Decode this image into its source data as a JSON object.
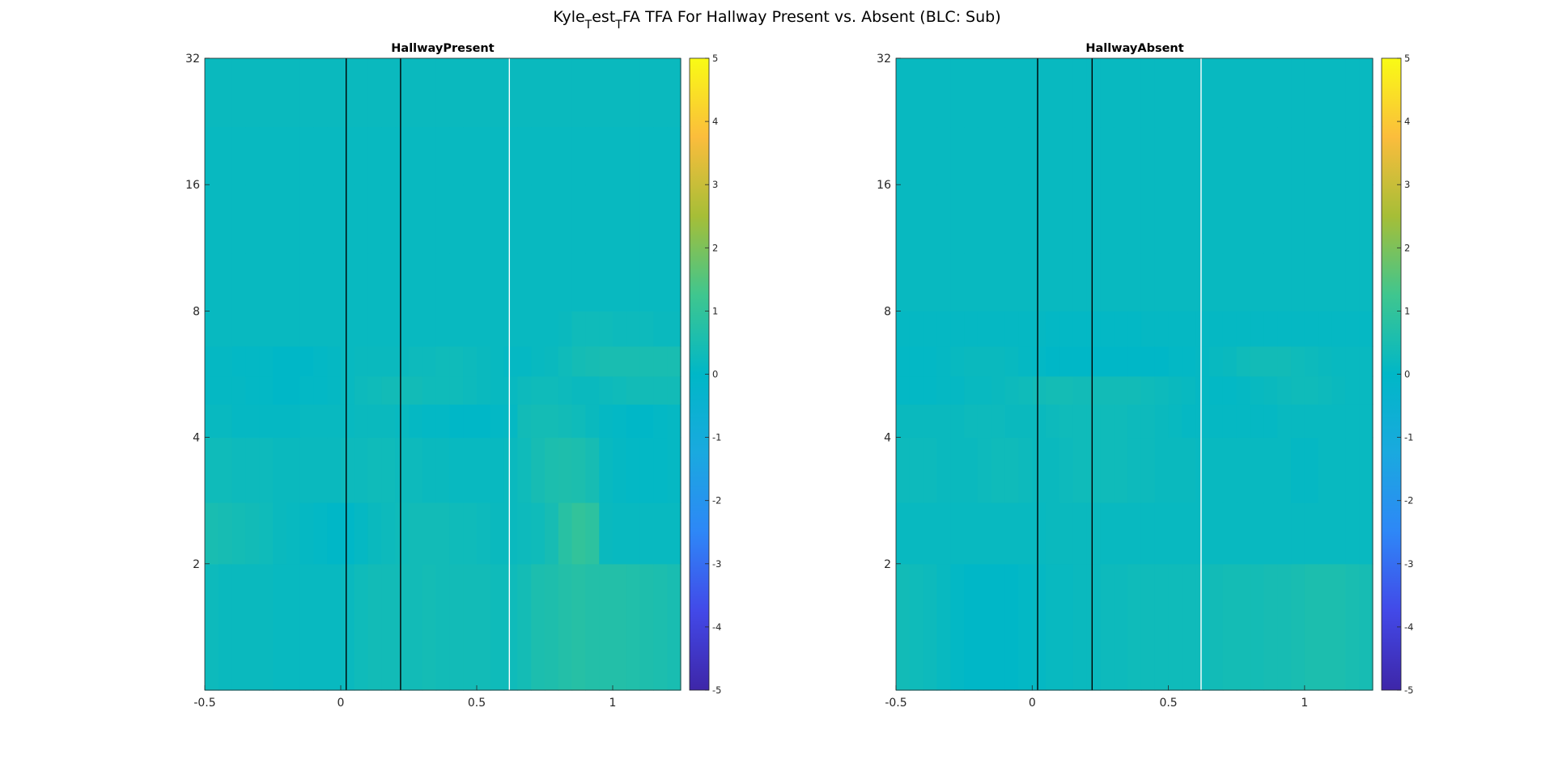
{
  "figure": {
    "title_parts": [
      "Kyle",
      "T",
      "est",
      "T",
      "FA TFA For Hallway Present vs. Absent (BLC: Sub)"
    ]
  },
  "colors": {
    "background": "#ffffff",
    "event_line_1": "#000000",
    "event_line_2": "#000000",
    "event_line_3": "#ffffff",
    "colormap": "parula"
  },
  "chart_data": [
    {
      "type": "heatmap",
      "title": "HallwayPresent",
      "xlabel": "",
      "ylabel": "",
      "x_range": [
        -0.5,
        1.25
      ],
      "x_ticks": [
        -0.5,
        0,
        0.5,
        1
      ],
      "x_tick_labels": [
        "-0.5",
        "0",
        "0.5",
        "1"
      ],
      "y_scale": "log2",
      "y_range": [
        1,
        32
      ],
      "y_ticks": [
        2,
        4,
        8,
        16,
        32
      ],
      "y_tick_labels": [
        "2",
        "4",
        "8",
        "16",
        "32"
      ],
      "x_bin_edges": [
        -0.5,
        -0.45,
        -0.4,
        -0.35,
        -0.3,
        -0.25,
        -0.2,
        -0.15,
        -0.1,
        -0.05,
        0,
        0.05,
        0.1,
        0.15,
        0.2,
        0.25,
        0.3,
        0.35,
        0.4,
        0.45,
        0.5,
        0.55,
        0.6,
        0.65,
        0.7,
        0.75,
        0.8,
        0.85,
        0.9,
        0.95,
        1.0,
        1.05,
        1.1,
        1.15,
        1.2,
        1.25
      ],
      "freq_bin_edges": [
        1,
        2,
        2.8,
        4,
        4.8,
        5.6,
        6.6,
        8,
        11,
        16,
        22,
        32
      ],
      "values": [
        [
          0.25,
          0.2,
          0.2,
          0.2,
          0.2,
          0.15,
          0.15,
          0.15,
          0.15,
          0.15,
          0.2,
          0.3,
          0.35,
          0.35,
          0.35,
          0.35,
          0.4,
          0.35,
          0.35,
          0.35,
          0.35,
          0.3,
          0.3,
          0.4,
          0.55,
          0.6,
          0.7,
          0.75,
          0.7,
          0.7,
          0.7,
          0.65,
          0.6,
          0.55,
          0.5
        ],
        [
          0.5,
          0.45,
          0.4,
          0.35,
          0.3,
          0.2,
          0.15,
          0.1,
          0.05,
          0.0,
          0.0,
          0.1,
          0.2,
          0.25,
          0.3,
          0.35,
          0.35,
          0.35,
          0.3,
          0.3,
          0.25,
          0.2,
          0.2,
          0.25,
          0.3,
          0.45,
          0.8,
          1.0,
          0.9,
          0.2,
          0.15,
          0.15,
          0.15,
          0.15,
          0.15
        ],
        [
          0.3,
          0.3,
          0.25,
          0.25,
          0.25,
          0.2,
          0.2,
          0.2,
          0.2,
          0.2,
          0.25,
          0.25,
          0.3,
          0.3,
          0.25,
          0.25,
          0.2,
          0.2,
          0.15,
          0.15,
          0.15,
          0.15,
          0.2,
          0.3,
          0.45,
          0.55,
          0.6,
          0.55,
          0.45,
          0.15,
          0.1,
          0.05,
          0.05,
          0.05,
          0.1
        ],
        [
          0.15,
          0.15,
          0.1,
          0.1,
          0.1,
          0.1,
          0.1,
          0.15,
          0.15,
          0.15,
          0.15,
          0.2,
          0.2,
          0.2,
          0.15,
          0.1,
          0.05,
          0.05,
          0.0,
          0.0,
          0.0,
          0.05,
          0.1,
          0.35,
          0.4,
          0.4,
          0.35,
          0.3,
          0.2,
          0.1,
          0.05,
          0.0,
          0.0,
          0.05,
          0.1
        ],
        [
          0.1,
          0.1,
          0.1,
          0.05,
          0.05,
          0.0,
          0.0,
          0.05,
          0.05,
          0.1,
          0.15,
          0.25,
          0.3,
          0.35,
          0.35,
          0.35,
          0.3,
          0.3,
          0.3,
          0.25,
          0.2,
          0.15,
          0.15,
          0.25,
          0.3,
          0.3,
          0.25,
          0.2,
          0.2,
          0.25,
          0.3,
          0.35,
          0.35,
          0.35,
          0.35
        ],
        [
          0.1,
          0.1,
          0.05,
          0.05,
          0.05,
          0.0,
          0.0,
          0.0,
          0.05,
          0.1,
          0.15,
          0.2,
          0.2,
          0.2,
          0.2,
          0.25,
          0.25,
          0.3,
          0.3,
          0.25,
          0.2,
          0.15,
          0.1,
          0.1,
          0.15,
          0.2,
          0.3,
          0.4,
          0.45,
          0.5,
          0.5,
          0.5,
          0.5,
          0.5,
          0.5
        ],
        [
          0.15,
          0.15,
          0.15,
          0.15,
          0.15,
          0.15,
          0.15,
          0.15,
          0.15,
          0.15,
          0.15,
          0.15,
          0.15,
          0.15,
          0.15,
          0.15,
          0.15,
          0.15,
          0.15,
          0.15,
          0.15,
          0.15,
          0.15,
          0.15,
          0.15,
          0.15,
          0.2,
          0.3,
          0.3,
          0.3,
          0.25,
          0.25,
          0.25,
          0.2,
          0.2
        ],
        [
          0.15,
          0.15,
          0.15,
          0.15,
          0.15,
          0.15,
          0.15,
          0.15,
          0.15,
          0.15,
          0.15,
          0.15,
          0.15,
          0.15,
          0.15,
          0.15,
          0.15,
          0.15,
          0.15,
          0.15,
          0.15,
          0.15,
          0.15,
          0.15,
          0.15,
          0.15,
          0.15,
          0.15,
          0.15,
          0.15,
          0.15,
          0.15,
          0.15,
          0.15,
          0.15
        ],
        [
          0.15,
          0.15,
          0.15,
          0.15,
          0.15,
          0.15,
          0.15,
          0.15,
          0.15,
          0.15,
          0.15,
          0.15,
          0.15,
          0.15,
          0.15,
          0.15,
          0.15,
          0.15,
          0.15,
          0.15,
          0.15,
          0.15,
          0.15,
          0.15,
          0.15,
          0.15,
          0.15,
          0.15,
          0.15,
          0.15,
          0.15,
          0.15,
          0.15,
          0.15,
          0.15
        ],
        [
          0.15,
          0.15,
          0.15,
          0.15,
          0.15,
          0.15,
          0.15,
          0.15,
          0.15,
          0.15,
          0.15,
          0.15,
          0.15,
          0.15,
          0.15,
          0.15,
          0.15,
          0.15,
          0.15,
          0.15,
          0.15,
          0.15,
          0.15,
          0.15,
          0.15,
          0.15,
          0.15,
          0.15,
          0.15,
          0.15,
          0.15,
          0.15,
          0.15,
          0.15,
          0.15
        ],
        [
          0.2,
          0.2,
          0.2,
          0.2,
          0.2,
          0.2,
          0.2,
          0.2,
          0.2,
          0.2,
          0.2,
          0.2,
          0.2,
          0.2,
          0.2,
          0.2,
          0.2,
          0.2,
          0.2,
          0.2,
          0.2,
          0.2,
          0.2,
          0.2,
          0.2,
          0.2,
          0.2,
          0.2,
          0.2,
          0.2,
          0.2,
          0.2,
          0.2,
          0.2,
          0.2
        ]
      ],
      "event_lines_x": [
        0.02,
        0.22,
        0.62
      ],
      "colorbar": {
        "range": [
          -5,
          5
        ],
        "ticks": [
          -5,
          -4,
          -3,
          -2,
          -1,
          0,
          1,
          2,
          3,
          4,
          5
        ],
        "tick_labels": [
          "-5",
          "-4",
          "-3",
          "-2",
          "-1",
          "0",
          "1",
          "2",
          "3",
          "4",
          "5"
        ]
      }
    },
    {
      "type": "heatmap",
      "title": "HallwayAbsent",
      "xlabel": "",
      "ylabel": "",
      "x_range": [
        -0.5,
        1.25
      ],
      "x_ticks": [
        -0.5,
        0,
        0.5,
        1
      ],
      "x_tick_labels": [
        "-0.5",
        "0",
        "0.5",
        "1"
      ],
      "y_scale": "log2",
      "y_range": [
        1,
        32
      ],
      "y_ticks": [
        2,
        4,
        8,
        16,
        32
      ],
      "y_tick_labels": [
        "2",
        "4",
        "8",
        "16",
        "32"
      ],
      "x_bin_edges": [
        -0.5,
        -0.45,
        -0.4,
        -0.35,
        -0.3,
        -0.25,
        -0.2,
        -0.15,
        -0.1,
        -0.05,
        0,
        0.05,
        0.1,
        0.15,
        0.2,
        0.25,
        0.3,
        0.35,
        0.4,
        0.45,
        0.5,
        0.55,
        0.6,
        0.65,
        0.7,
        0.75,
        0.8,
        0.85,
        0.9,
        0.95,
        1.0,
        1.05,
        1.1,
        1.15,
        1.2,
        1.25
      ],
      "freq_bin_edges": [
        1,
        2,
        2.8,
        4,
        4.8,
        5.6,
        6.6,
        8,
        11,
        16,
        22,
        32
      ],
      "values": [
        [
          0.35,
          0.3,
          0.25,
          0.15,
          0.05,
          0.0,
          0.0,
          0.0,
          0.0,
          0.05,
          0.1,
          0.15,
          0.15,
          0.2,
          0.2,
          0.25,
          0.25,
          0.3,
          0.3,
          0.3,
          0.3,
          0.3,
          0.3,
          0.35,
          0.4,
          0.4,
          0.4,
          0.45,
          0.45,
          0.5,
          0.55,
          0.55,
          0.55,
          0.5,
          0.45
        ],
        [
          0.15,
          0.15,
          0.15,
          0.15,
          0.15,
          0.15,
          0.15,
          0.15,
          0.15,
          0.15,
          0.15,
          0.2,
          0.2,
          0.2,
          0.2,
          0.15,
          0.15,
          0.15,
          0.15,
          0.15,
          0.15,
          0.15,
          0.15,
          0.15,
          0.15,
          0.15,
          0.15,
          0.15,
          0.15,
          0.15,
          0.15,
          0.15,
          0.15,
          0.15,
          0.15
        ],
        [
          0.25,
          0.25,
          0.25,
          0.2,
          0.2,
          0.2,
          0.25,
          0.3,
          0.3,
          0.25,
          0.2,
          0.2,
          0.25,
          0.3,
          0.3,
          0.3,
          0.3,
          0.25,
          0.25,
          0.2,
          0.2,
          0.2,
          0.15,
          0.15,
          0.15,
          0.15,
          0.15,
          0.15,
          0.15,
          0.1,
          0.1,
          0.15,
          0.15,
          0.15,
          0.15
        ],
        [
          0.2,
          0.2,
          0.2,
          0.2,
          0.2,
          0.25,
          0.25,
          0.25,
          0.2,
          0.2,
          0.2,
          0.25,
          0.3,
          0.3,
          0.3,
          0.3,
          0.3,
          0.25,
          0.25,
          0.2,
          0.15,
          0.1,
          0.1,
          0.1,
          0.1,
          0.1,
          0.1,
          0.1,
          0.15,
          0.15,
          0.15,
          0.15,
          0.15,
          0.15,
          0.15
        ],
        [
          0.05,
          0.05,
          0.05,
          0.1,
          0.1,
          0.15,
          0.15,
          0.2,
          0.25,
          0.3,
          0.35,
          0.4,
          0.4,
          0.35,
          0.35,
          0.35,
          0.35,
          0.35,
          0.3,
          0.25,
          0.2,
          0.15,
          0.1,
          0.05,
          0.05,
          0.1,
          0.15,
          0.2,
          0.25,
          0.3,
          0.3,
          0.25,
          0.2,
          0.15,
          0.15
        ],
        [
          0.05,
          0.05,
          0.05,
          0.1,
          0.15,
          0.2,
          0.2,
          0.2,
          0.15,
          0.1,
          0.05,
          0.0,
          0.0,
          0.0,
          0.0,
          0.0,
          0.0,
          0.0,
          0.0,
          0.0,
          0.05,
          0.05,
          0.1,
          0.15,
          0.2,
          0.3,
          0.35,
          0.35,
          0.35,
          0.3,
          0.25,
          0.2,
          0.15,
          0.15,
          0.15
        ],
        [
          0.1,
          0.1,
          0.1,
          0.1,
          0.1,
          0.1,
          0.1,
          0.1,
          0.1,
          0.1,
          0.1,
          0.05,
          0.05,
          0.05,
          0.05,
          0.05,
          0.05,
          0.05,
          0.1,
          0.1,
          0.1,
          0.1,
          0.1,
          0.1,
          0.1,
          0.1,
          0.1,
          0.1,
          0.1,
          0.1,
          0.1,
          0.1,
          0.1,
          0.1,
          0.1
        ],
        [
          0.15,
          0.15,
          0.15,
          0.15,
          0.15,
          0.15,
          0.15,
          0.15,
          0.15,
          0.15,
          0.15,
          0.15,
          0.15,
          0.15,
          0.15,
          0.15,
          0.15,
          0.15,
          0.15,
          0.15,
          0.15,
          0.15,
          0.15,
          0.15,
          0.15,
          0.15,
          0.15,
          0.15,
          0.15,
          0.15,
          0.15,
          0.15,
          0.15,
          0.15,
          0.15
        ],
        [
          0.15,
          0.15,
          0.15,
          0.15,
          0.15,
          0.15,
          0.15,
          0.15,
          0.15,
          0.15,
          0.15,
          0.15,
          0.15,
          0.15,
          0.15,
          0.15,
          0.15,
          0.15,
          0.15,
          0.15,
          0.15,
          0.15,
          0.15,
          0.15,
          0.15,
          0.15,
          0.15,
          0.15,
          0.15,
          0.15,
          0.15,
          0.15,
          0.15,
          0.15,
          0.15
        ],
        [
          0.15,
          0.15,
          0.15,
          0.15,
          0.15,
          0.15,
          0.15,
          0.15,
          0.15,
          0.15,
          0.15,
          0.15,
          0.15,
          0.15,
          0.15,
          0.15,
          0.15,
          0.15,
          0.15,
          0.15,
          0.15,
          0.15,
          0.15,
          0.15,
          0.15,
          0.15,
          0.15,
          0.15,
          0.15,
          0.15,
          0.15,
          0.15,
          0.15,
          0.15,
          0.15
        ],
        [
          0.15,
          0.15,
          0.15,
          0.15,
          0.15,
          0.15,
          0.15,
          0.15,
          0.15,
          0.15,
          0.15,
          0.15,
          0.15,
          0.15,
          0.15,
          0.15,
          0.15,
          0.15,
          0.15,
          0.15,
          0.15,
          0.15,
          0.15,
          0.15,
          0.15,
          0.15,
          0.15,
          0.15,
          0.15,
          0.15,
          0.15,
          0.15,
          0.15,
          0.15,
          0.15
        ]
      ],
      "event_lines_x": [
        0.02,
        0.22,
        0.62
      ],
      "colorbar": {
        "range": [
          -5,
          5
        ],
        "ticks": [
          -5,
          -4,
          -3,
          -2,
          -1,
          0,
          1,
          2,
          3,
          4,
          5
        ],
        "tick_labels": [
          "-5",
          "-4",
          "-3",
          "-2",
          "-1",
          "0",
          "1",
          "2",
          "3",
          "4",
          "5"
        ]
      }
    }
  ]
}
